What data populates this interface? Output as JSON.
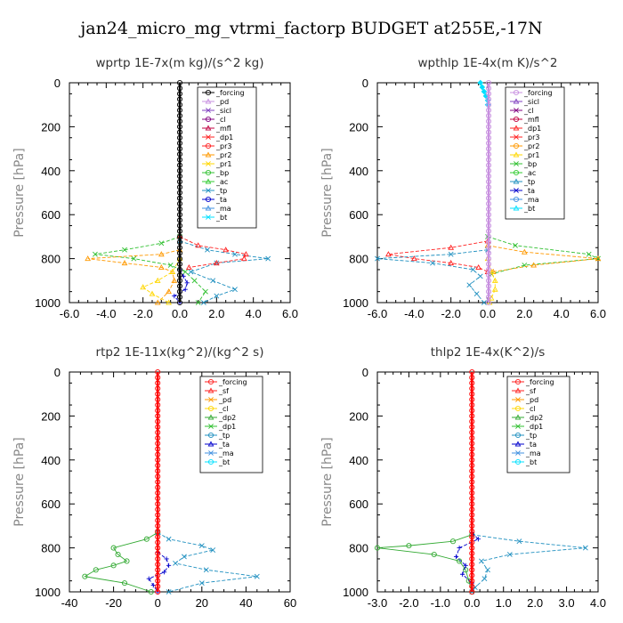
{
  "suptitle": "jan24_micro_mg_vtrmi_factorp  BUDGET at255E,-17N",
  "colors": {
    "forcing": "#000000",
    "pd": "#c890e0",
    "sicl": "#8040c0",
    "cl": "#800080",
    "mfl": "#c00040",
    "dp1": "#ff2020",
    "pr3": "#ff2020",
    "pr2": "#ff9900",
    "pr1": "#ffd700",
    "bp": "#30c030",
    "ac": "#33cc33",
    "tp": "#2090c0",
    "ta": "#0000cc",
    "ma": "#4090e0",
    "bt": "#00e0ff",
    "sf": "#ff2020",
    "dp2": "#33aa33",
    "red": "#ff0000"
  },
  "chart_data": [
    {
      "type": "line",
      "title": "wprtp   1E-7x(m kg)/(s^2 kg)",
      "xlabel": "",
      "ylabel": "Pressure [hPa]",
      "xlim": [
        -6,
        6
      ],
      "ylim": [
        1000,
        0
      ],
      "xticks": [
        "-6.0",
        "-4.0",
        "-2.0",
        "0.0",
        "2.0",
        "4.0",
        "6.0"
      ],
      "xtick_values": [
        -6,
        -4,
        -2,
        0,
        2,
        4,
        6
      ],
      "yticks": [
        "0",
        "200",
        "400",
        "600",
        "800",
        "1000"
      ],
      "ytick_values": [
        0,
        200,
        400,
        600,
        800,
        1000
      ],
      "legend": [
        "_forcing",
        "_pd",
        "_sicl",
        "_cl",
        "_mfl",
        "_dp1",
        "_pr3",
        "_pr2",
        "_pr1",
        "_bp",
        "_ac",
        "_tp",
        "_ta",
        "_ma",
        "_bt"
      ],
      "legend_colors": [
        "forcing",
        "pd",
        "sicl",
        "cl",
        "mfl",
        "dp1",
        "pr3",
        "pr2",
        "pr1",
        "bp",
        "ac",
        "tp",
        "ta",
        "ma",
        "bt"
      ],
      "series": [
        {
          "name": "_bp",
          "color": "bp",
          "marker": "x",
          "y": [
            700,
            730,
            760,
            780,
            800,
            830,
            860,
            900,
            950,
            1000
          ],
          "x": [
            0,
            -1.0,
            -3.0,
            -4.6,
            -2.5,
            -0.5,
            0.3,
            0.8,
            1.4,
            1.0
          ]
        },
        {
          "name": "_pr2",
          "color": "pr2",
          "marker": "tri",
          "y": [
            760,
            780,
            800,
            820,
            840,
            860,
            900,
            950,
            1000
          ],
          "x": [
            0,
            -1.0,
            -5.0,
            -3.0,
            -1.0,
            -0.4,
            -0.3,
            -0.6,
            -1.2
          ]
        },
        {
          "name": "_pr1",
          "color": "pr1",
          "marker": "tri",
          "y": [
            800,
            860,
            900,
            930,
            960,
            1000
          ],
          "x": [
            0,
            -0.4,
            -1.2,
            -2.0,
            -1.5,
            -0.6
          ]
        },
        {
          "name": "_tp",
          "color": "tp",
          "marker": "x",
          "y": [
            720,
            760,
            780,
            800,
            820,
            860,
            900,
            940,
            970,
            1000
          ],
          "x": [
            0,
            1.5,
            3.0,
            4.8,
            2.0,
            0.6,
            1.8,
            3.0,
            2.0,
            1.3
          ]
        },
        {
          "name": "_pr3",
          "color": "pr3",
          "marker": "tri",
          "y": [
            700,
            740,
            760,
            780,
            800,
            820,
            840
          ],
          "x": [
            0,
            1.0,
            2.5,
            3.6,
            3.5,
            2.0,
            0.5
          ]
        },
        {
          "name": "_ta",
          "color": "ta",
          "marker": "plus",
          "y": [
            850,
            880,
            910,
            940,
            970,
            1000
          ],
          "x": [
            0,
            0.2,
            0.4,
            0.3,
            -0.3,
            0.0
          ]
        },
        {
          "name": "_forcing",
          "color": "forcing",
          "marker": "circle",
          "y": [
            0,
            1000
          ],
          "x": [
            0,
            0
          ]
        }
      ]
    },
    {
      "type": "line",
      "title": "wpthlp   1E-4x(m K)/s^2",
      "xlabel": "",
      "ylabel": "Pressure [hPa]",
      "xlim": [
        -6,
        6
      ],
      "ylim": [
        1000,
        0
      ],
      "xticks": [
        "-6.0",
        "-4.0",
        "-2.0",
        "0.0",
        "2.0",
        "4.0",
        "6.0"
      ],
      "xtick_values": [
        -6,
        -4,
        -2,
        0,
        2,
        4,
        6
      ],
      "yticks": [
        "0",
        "200",
        "400",
        "600",
        "800",
        "1000"
      ],
      "ytick_values": [
        0,
        200,
        400,
        600,
        800,
        1000
      ],
      "legend": [
        "_forcing",
        "_sicl",
        "_cl",
        "_mfl",
        "_dp1",
        "_pr3",
        "_pr2",
        "_pr1",
        "_bp",
        "_ac",
        "_tp",
        "_ta",
        "_ma",
        "_bt"
      ],
      "legend_colors": [
        "pd",
        "sicl",
        "cl",
        "mfl",
        "dp1",
        "pr3",
        "pr2",
        "pr1",
        "bp",
        "ac",
        "tp",
        "ta",
        "ma",
        "bt"
      ],
      "series": [
        {
          "name": "_pr3",
          "color": "pr3",
          "marker": "tri",
          "y": [
            720,
            750,
            780,
            800,
            820,
            840,
            860
          ],
          "x": [
            0,
            -2.0,
            -5.4,
            -4.0,
            -2.0,
            -0.5,
            0
          ]
        },
        {
          "name": "_tp",
          "color": "tp",
          "marker": "x",
          "y": [
            760,
            780,
            800,
            820,
            850,
            880,
            920,
            960,
            1000
          ],
          "x": [
            0,
            -2.0,
            -6.0,
            -3.0,
            -0.8,
            -0.4,
            -1.0,
            -0.6,
            -0.2
          ]
        },
        {
          "name": "_bp",
          "color": "bp",
          "marker": "x",
          "y": [
            700,
            740,
            780,
            800,
            830,
            870
          ],
          "x": [
            0,
            1.5,
            5.5,
            6.0,
            2.0,
            0.2
          ]
        },
        {
          "name": "_pr2",
          "color": "pr2",
          "marker": "tri",
          "y": [
            740,
            770,
            800,
            830,
            860
          ],
          "x": [
            0,
            2.0,
            6.0,
            2.5,
            0.3
          ]
        },
        {
          "name": "_pr1",
          "color": "pr1",
          "marker": "tri",
          "y": [
            800,
            860,
            900,
            940,
            980,
            1000
          ],
          "x": [
            0,
            0.2,
            0.4,
            0.4,
            0.2,
            0.1
          ]
        },
        {
          "name": "_bt",
          "color": "bt",
          "marker": "diamond",
          "y": [
            0,
            20,
            40,
            60,
            80,
            100
          ],
          "x": [
            -0.4,
            -0.3,
            -0.2,
            -0.1,
            0.0,
            0.0
          ]
        },
        {
          "name": "_forcing",
          "color": "pd",
          "marker": "circle",
          "y": [
            0,
            1000
          ],
          "x": [
            0.05,
            0.05
          ]
        }
      ]
    },
    {
      "type": "line",
      "title": "rtp2   1E-11x(kg^2)/(kg^2 s)",
      "xlabel": "",
      "ylabel": "Pressure [hPa]",
      "xlim": [
        -40,
        60
      ],
      "ylim": [
        1000,
        0
      ],
      "xticks": [
        "-40",
        "-20",
        "0",
        "20",
        "40",
        "60"
      ],
      "xtick_values": [
        -40,
        -20,
        0,
        20,
        40,
        60
      ],
      "yticks": [
        "0",
        "200",
        "400",
        "600",
        "800",
        "1000"
      ],
      "ytick_values": [
        0,
        200,
        400,
        600,
        800,
        1000
      ],
      "legend": [
        "_forcing",
        "_sf",
        "_pd",
        "_cl",
        "_dp2",
        "_dp1",
        "_tp",
        "_ta",
        "_ma",
        "_bt"
      ],
      "legend_colors": [
        "dp1",
        "sf",
        "pr2",
        "pr1",
        "dp2",
        "bp",
        "tp",
        "ta",
        "ma",
        "bt"
      ],
      "series": [
        {
          "name": "_dp2",
          "color": "dp2",
          "marker": "circle",
          "y": [
            730,
            760,
            800,
            830,
            860,
            880,
            900,
            930,
            960,
            1000
          ],
          "x": [
            0,
            -5,
            -20,
            -18,
            -14,
            -20,
            -28,
            -33,
            -15,
            -3
          ]
        },
        {
          "name": "_tp",
          "color": "tp",
          "marker": "x",
          "y": [
            730,
            760,
            790,
            810,
            840,
            870,
            900,
            930,
            960,
            1000
          ],
          "x": [
            0,
            5,
            20,
            25,
            12,
            8,
            22,
            45,
            20,
            5
          ]
        },
        {
          "name": "_ta",
          "color": "ta",
          "marker": "plus",
          "y": [
            820,
            850,
            880,
            910,
            940,
            970,
            1000
          ],
          "x": [
            0,
            4,
            5,
            3,
            -4,
            -2,
            0
          ]
        },
        {
          "name": "_forcing",
          "color": "red",
          "marker": "circle",
          "y": [
            0,
            1000
          ],
          "x": [
            0,
            0
          ]
        }
      ]
    },
    {
      "type": "line",
      "title": "thlp2   1E-4x(K^2)/s",
      "xlabel": "",
      "ylabel": "Pressure [hPa]",
      "xlim": [
        -3,
        4
      ],
      "ylim": [
        1000,
        0
      ],
      "xticks": [
        "-3.0",
        "-2.0",
        "-1.0",
        "0.0",
        "1.0",
        "2.0",
        "3.0",
        "4.0"
      ],
      "xtick_values": [
        -3,
        -2,
        -1,
        0,
        1,
        2,
        3,
        4
      ],
      "yticks": [
        "0",
        "200",
        "400",
        "600",
        "800",
        "1000"
      ],
      "ytick_values": [
        0,
        200,
        400,
        600,
        800,
        1000
      ],
      "legend": [
        "_forcing",
        "_sf",
        "_pd",
        "_cl",
        "_dp2",
        "_dp1",
        "_tp",
        "_ta",
        "_ma",
        "_bt"
      ],
      "legend_colors": [
        "dp1",
        "sf",
        "pr2",
        "pr1",
        "dp2",
        "bp",
        "tp",
        "ta",
        "ma",
        "bt"
      ],
      "series": [
        {
          "name": "_dp2",
          "color": "dp2",
          "marker": "circle",
          "y": [
            740,
            770,
            790,
            800,
            830,
            860,
            900,
            950,
            1000
          ],
          "x": [
            0,
            -0.6,
            -2.0,
            -3.0,
            -1.2,
            -0.4,
            -0.2,
            -0.1,
            0
          ]
        },
        {
          "name": "_tp",
          "color": "tp",
          "marker": "x",
          "y": [
            740,
            770,
            800,
            830,
            860,
            900,
            940,
            980,
            1000
          ],
          "x": [
            0,
            1.5,
            3.6,
            1.2,
            0.3,
            0.5,
            0.4,
            0.1,
            0
          ]
        },
        {
          "name": "_ta",
          "color": "ta",
          "marker": "plus",
          "y": [
            730,
            760,
            800,
            840,
            880,
            920,
            960
          ],
          "x": [
            0,
            0.2,
            -0.4,
            -0.5,
            -0.2,
            -0.3,
            0
          ]
        },
        {
          "name": "_forcing",
          "color": "red",
          "marker": "circle",
          "y": [
            0,
            1000
          ],
          "x": [
            0,
            0
          ]
        }
      ]
    }
  ]
}
